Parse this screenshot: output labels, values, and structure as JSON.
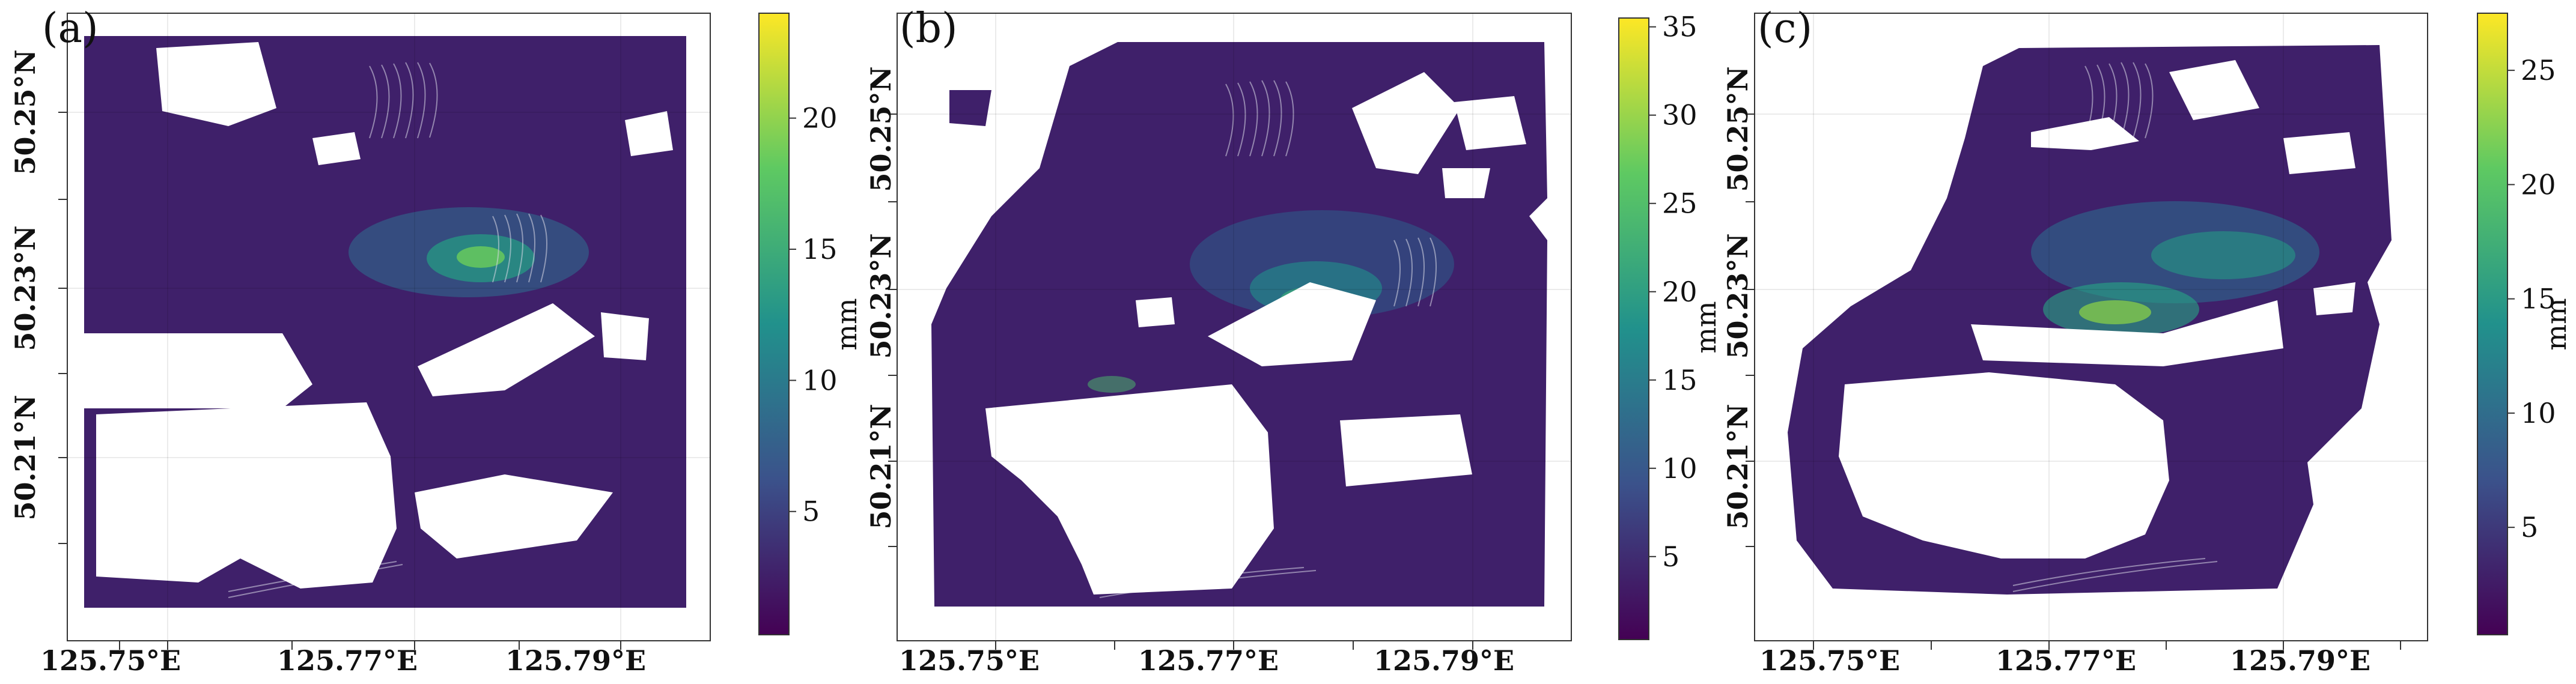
{
  "figure": {
    "colormap": [
      "#440154",
      "#3b528b",
      "#21918c",
      "#5ec962",
      "#fde725"
    ],
    "panels": [
      {
        "id": "a",
        "label": "(a)",
        "x_ticks": [
          "125.75°E",
          "125.77°E",
          "125.79°E"
        ],
        "y_ticks": [
          "50.25°N",
          "50.23°N",
          "50.21°N"
        ],
        "colorbar": {
          "unit": "mm",
          "ticks": [
            "5",
            "10",
            "15",
            "20"
          ],
          "min": 0.3,
          "max": 24
        }
      },
      {
        "id": "b",
        "label": "(b)",
        "x_ticks": [
          "125.75°E",
          "125.77°E",
          "125.79°E"
        ],
        "y_ticks": [
          "50.25°N",
          "50.23°N",
          "50.21°N"
        ],
        "colorbar": {
          "unit": "mm",
          "ticks": [
            "5",
            "10",
            "15",
            "20",
            "25",
            "30",
            "35"
          ],
          "min": 0.3,
          "max": 35.5
        }
      },
      {
        "id": "c",
        "label": "(c)",
        "x_ticks": [
          "125.75°E",
          "125.77°E",
          "125.79°E"
        ],
        "y_ticks": [
          "50.25°N",
          "50.23°N",
          "50.21°N"
        ],
        "colorbar": {
          "unit": "mm",
          "ticks": [
            "5",
            "10",
            "15",
            "20",
            "25"
          ],
          "min": 0.3,
          "max": 27.5
        }
      }
    ]
  }
}
